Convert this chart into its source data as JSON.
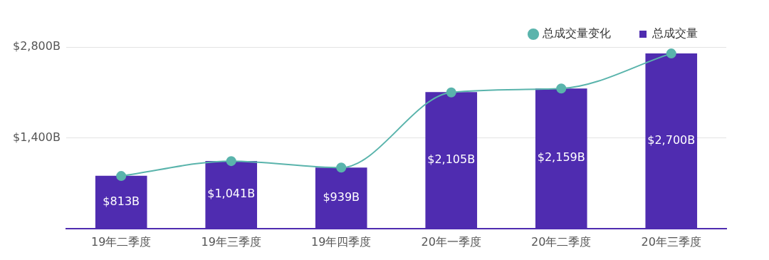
{
  "chart_data": {
    "type": "bar",
    "categories": [
      "19年二季度",
      "19年三季度",
      "19年四季度",
      "20年一季度",
      "20年二季度",
      "20年三季度"
    ],
    "series": [
      {
        "name": "总成交量变化",
        "type": "line",
        "color": "#5ab4ac",
        "values": [
          810,
          1040,
          940,
          2100,
          2160,
          2700
        ]
      },
      {
        "name": "总成交量",
        "color": "#4f2cb0",
        "values": [
          813,
          1041,
          939,
          2105,
          2159,
          2700
        ],
        "value_labels": [
          "$813B",
          "$1,041B",
          "$939B",
          "$2,105B",
          "$2,159B",
          "$2,700B"
        ]
      }
    ],
    "ylim": [
      0,
      2800
    ],
    "yticks": [
      {
        "value": 0,
        "label": null
      },
      {
        "value": 1400,
        "label": "$1,400B"
      },
      {
        "value": 2800,
        "label": "$2,800B"
      }
    ],
    "grid": "y",
    "legend": "top right",
    "marker": "circle"
  }
}
